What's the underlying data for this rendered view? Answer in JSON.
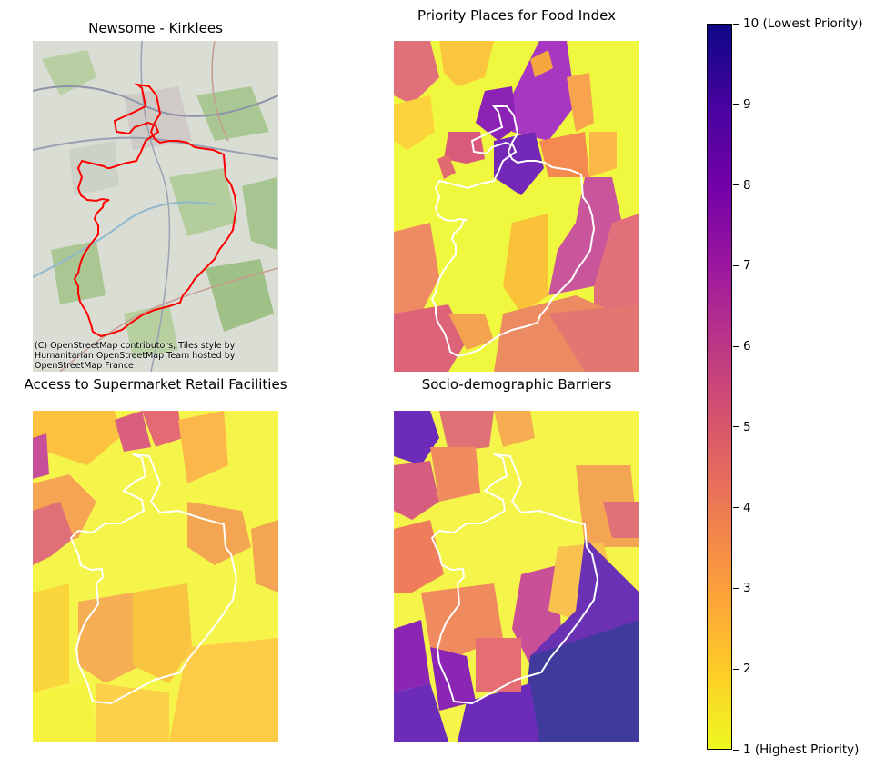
{
  "panels": {
    "basemap": {
      "title": "Newsome - Kirklees",
      "attribution": [
        "(C) OpenStreetMap contributors, Tiles style by",
        "Humanitarian OpenStreetMap Team hosted by",
        "OpenStreetMap France"
      ]
    },
    "priority": {
      "title": "Priority Places for Food Index"
    },
    "access": {
      "title": "Access to Supermarket Retail Facilities"
    },
    "barriers": {
      "title": "Socio-demographic Barriers"
    }
  },
  "colorbar": {
    "min": 1,
    "max": 10,
    "ticks": [
      {
        "value": 1,
        "label": "1 (Highest Priority)"
      },
      {
        "value": 2,
        "label": "2"
      },
      {
        "value": 3,
        "label": "3"
      },
      {
        "value": 4,
        "label": "4"
      },
      {
        "value": 5,
        "label": "5"
      },
      {
        "value": 6,
        "label": "6"
      },
      {
        "value": 7,
        "label": "7"
      },
      {
        "value": 8,
        "label": "8"
      },
      {
        "value": 9,
        "label": "9"
      },
      {
        "value": 10,
        "label": "10 (Lowest Priority)"
      }
    ],
    "gradient": [
      "#f0f921",
      "#fdca26",
      "#fb9f3a",
      "#ed7953",
      "#d8576b",
      "#bd3786",
      "#9c179e",
      "#7201a8",
      "#46039f",
      "#0d0887"
    ]
  },
  "colors": {
    "boundary_basemap": "#ff0000",
    "boundary_choropleth": "#ffffff",
    "basemap_bg": "#d8dcd3"
  }
}
